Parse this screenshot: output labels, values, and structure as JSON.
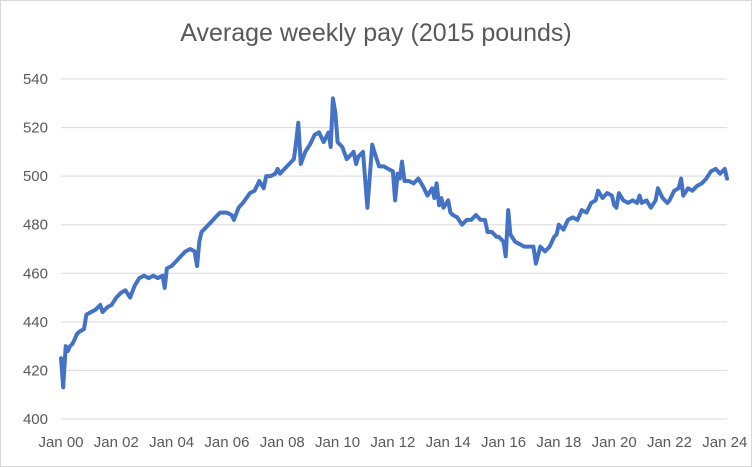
{
  "chart_data": {
    "type": "line",
    "title": "Average weekly pay (2015 pounds)",
    "xlabel": "",
    "ylabel": "",
    "ylim": [
      400,
      540
    ],
    "y_ticks": [
      400,
      420,
      440,
      460,
      480,
      500,
      520,
      540
    ],
    "x_range": [
      2000,
      2024.08
    ],
    "x_ticks": [
      {
        "x": 2000,
        "label": "Jan 00"
      },
      {
        "x": 2002,
        "label": "Jan 02"
      },
      {
        "x": 2004,
        "label": "Jan 04"
      },
      {
        "x": 2006,
        "label": "Jan 06"
      },
      {
        "x": 2008,
        "label": "Jan 08"
      },
      {
        "x": 2010,
        "label": "Jan 10"
      },
      {
        "x": 2012,
        "label": "Jan 12"
      },
      {
        "x": 2014,
        "label": "Jan 14"
      },
      {
        "x": 2016,
        "label": "Jan 16"
      },
      {
        "x": 2018,
        "label": "Jan 18"
      },
      {
        "x": 2020,
        "label": "Jan 20"
      },
      {
        "x": 2022,
        "label": "Jan 22"
      },
      {
        "x": 2024,
        "label": "Jan 24"
      }
    ],
    "grid": true,
    "legend": "none",
    "series": [
      {
        "color": "#4472c4",
        "points": [
          [
            2000.0,
            425
          ],
          [
            2000.08,
            413
          ],
          [
            2000.17,
            430
          ],
          [
            2000.25,
            428
          ],
          [
            2000.33,
            430
          ],
          [
            2000.42,
            431
          ],
          [
            2000.5,
            433
          ],
          [
            2000.58,
            435
          ],
          [
            2000.67,
            436
          ],
          [
            2000.83,
            437
          ],
          [
            2000.92,
            443
          ],
          [
            2001.08,
            444
          ],
          [
            2001.25,
            445
          ],
          [
            2001.42,
            447
          ],
          [
            2001.5,
            444
          ],
          [
            2001.67,
            446
          ],
          [
            2001.83,
            447
          ],
          [
            2002.0,
            450
          ],
          [
            2002.17,
            452
          ],
          [
            2002.33,
            453
          ],
          [
            2002.5,
            450
          ],
          [
            2002.67,
            455
          ],
          [
            2002.83,
            458
          ],
          [
            2003.0,
            459
          ],
          [
            2003.17,
            458
          ],
          [
            2003.33,
            459
          ],
          [
            2003.5,
            458
          ],
          [
            2003.67,
            459
          ],
          [
            2003.75,
            454
          ],
          [
            2003.83,
            462
          ],
          [
            2004.0,
            463
          ],
          [
            2004.17,
            465
          ],
          [
            2004.33,
            467
          ],
          [
            2004.5,
            469
          ],
          [
            2004.67,
            470
          ],
          [
            2004.83,
            469
          ],
          [
            2004.92,
            463
          ],
          [
            2005.0,
            473
          ],
          [
            2005.08,
            477
          ],
          [
            2005.25,
            479
          ],
          [
            2005.42,
            481
          ],
          [
            2005.58,
            483
          ],
          [
            2005.75,
            485
          ],
          [
            2006.0,
            485
          ],
          [
            2006.17,
            484
          ],
          [
            2006.25,
            482
          ],
          [
            2006.42,
            487
          ],
          [
            2006.58,
            489
          ],
          [
            2006.83,
            493
          ],
          [
            2007.0,
            494
          ],
          [
            2007.17,
            498
          ],
          [
            2007.33,
            495
          ],
          [
            2007.42,
            500
          ],
          [
            2007.58,
            500
          ],
          [
            2007.75,
            501
          ],
          [
            2007.83,
            503
          ],
          [
            2007.92,
            501
          ],
          [
            2008.08,
            503
          ],
          [
            2008.25,
            505
          ],
          [
            2008.42,
            507
          ],
          [
            2008.5,
            514
          ],
          [
            2008.58,
            522
          ],
          [
            2008.67,
            505
          ],
          [
            2008.83,
            510
          ],
          [
            2009.0,
            513
          ],
          [
            2009.17,
            517
          ],
          [
            2009.33,
            518
          ],
          [
            2009.5,
            514
          ],
          [
            2009.67,
            518
          ],
          [
            2009.75,
            512
          ],
          [
            2009.83,
            532
          ],
          [
            2009.92,
            526
          ],
          [
            2010.0,
            514
          ],
          [
            2010.17,
            512
          ],
          [
            2010.33,
            507
          ],
          [
            2010.5,
            509
          ],
          [
            2010.58,
            510
          ],
          [
            2010.67,
            505
          ],
          [
            2010.75,
            508
          ],
          [
            2010.92,
            510
          ],
          [
            2011.08,
            487
          ],
          [
            2011.25,
            513
          ],
          [
            2011.33,
            510
          ],
          [
            2011.5,
            504
          ],
          [
            2011.67,
            504
          ],
          [
            2011.83,
            503
          ],
          [
            2012.0,
            502
          ],
          [
            2012.08,
            490
          ],
          [
            2012.17,
            501
          ],
          [
            2012.25,
            499
          ],
          [
            2012.33,
            506
          ],
          [
            2012.42,
            498
          ],
          [
            2012.58,
            498
          ],
          [
            2012.75,
            497
          ],
          [
            2012.92,
            499
          ],
          [
            2013.08,
            496
          ],
          [
            2013.25,
            492
          ],
          [
            2013.42,
            495
          ],
          [
            2013.5,
            491
          ],
          [
            2013.58,
            497
          ],
          [
            2013.67,
            488
          ],
          [
            2013.75,
            491
          ],
          [
            2013.83,
            487
          ],
          [
            2014.0,
            490
          ],
          [
            2014.08,
            485
          ],
          [
            2014.17,
            484
          ],
          [
            2014.33,
            483
          ],
          [
            2014.5,
            480
          ],
          [
            2014.67,
            482
          ],
          [
            2014.83,
            482
          ],
          [
            2015.0,
            484
          ],
          [
            2015.17,
            482
          ],
          [
            2015.33,
            482
          ],
          [
            2015.42,
            477
          ],
          [
            2015.58,
            477
          ],
          [
            2015.75,
            475
          ],
          [
            2015.83,
            475
          ],
          [
            2016.0,
            473
          ],
          [
            2016.08,
            467
          ],
          [
            2016.17,
            486
          ],
          [
            2016.25,
            476
          ],
          [
            2016.42,
            473
          ],
          [
            2016.58,
            472
          ],
          [
            2016.75,
            471
          ],
          [
            2016.92,
            471
          ],
          [
            2017.08,
            471
          ],
          [
            2017.17,
            464
          ],
          [
            2017.33,
            471
          ],
          [
            2017.5,
            469
          ],
          [
            2017.67,
            471
          ],
          [
            2017.83,
            475
          ],
          [
            2017.92,
            476
          ],
          [
            2018.0,
            480
          ],
          [
            2018.17,
            478
          ],
          [
            2018.33,
            482
          ],
          [
            2018.5,
            483
          ],
          [
            2018.67,
            482
          ],
          [
            2018.83,
            486
          ],
          [
            2019.0,
            485
          ],
          [
            2019.17,
            489
          ],
          [
            2019.33,
            490
          ],
          [
            2019.42,
            494
          ],
          [
            2019.58,
            491
          ],
          [
            2019.75,
            493
          ],
          [
            2019.92,
            492
          ],
          [
            2020.0,
            488
          ],
          [
            2020.08,
            487
          ],
          [
            2020.17,
            493
          ],
          [
            2020.33,
            490
          ],
          [
            2020.5,
            489
          ],
          [
            2020.67,
            490
          ],
          [
            2020.83,
            489
          ],
          [
            2020.92,
            492
          ],
          [
            2021.0,
            489
          ],
          [
            2021.17,
            490
          ],
          [
            2021.33,
            487
          ],
          [
            2021.5,
            490
          ],
          [
            2021.58,
            495
          ],
          [
            2021.75,
            491
          ],
          [
            2021.92,
            489
          ],
          [
            2022.0,
            490
          ],
          [
            2022.17,
            494
          ],
          [
            2022.33,
            495
          ],
          [
            2022.42,
            499
          ],
          [
            2022.5,
            492
          ],
          [
            2022.67,
            495
          ],
          [
            2022.83,
            494
          ],
          [
            2023.0,
            496
          ],
          [
            2023.17,
            497
          ],
          [
            2023.33,
            499
          ],
          [
            2023.5,
            502
          ],
          [
            2023.67,
            503
          ],
          [
            2023.83,
            501
          ],
          [
            2024.0,
            503
          ],
          [
            2024.08,
            499
          ]
        ]
      }
    ]
  }
}
